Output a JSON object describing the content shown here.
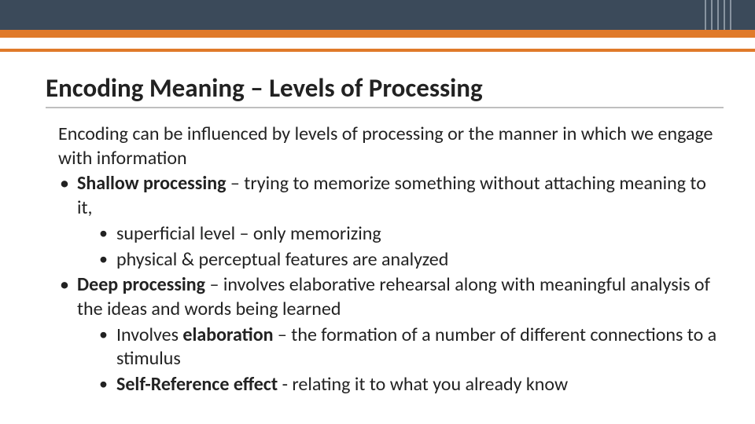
{
  "colors": {
    "bar_dark": "#3b4a5a",
    "bar_orange": "#e07a2a",
    "title_underline": "#bfbfbf",
    "text": "#222222",
    "background": "#ffffff",
    "vline": "#c9d2da"
  },
  "title": "Encoding Meaning – Levels of Processing",
  "intro": "Encoding can be influenced by levels of processing or the manner in which we engage with information",
  "bullets": [
    {
      "bold": "Shallow processing",
      "rest": " – trying to memorize something without attaching meaning to it,",
      "sub": [
        {
          "text": "superficial level – only memorizing"
        },
        {
          "text": "physical & perceptual features are analyzed"
        }
      ]
    },
    {
      "bold": "Deep processing",
      "rest": " – involves elaborative rehearsal along with meaningful analysis of the ideas and words being learned",
      "sub": [
        {
          "pre": "Involves ",
          "bold": "elaboration",
          "rest": " – the formation of a number of different connections to a stimulus"
        },
        {
          "bold": "Self-Reference effect",
          "rest": " - relating it to what you already know"
        }
      ]
    }
  ]
}
